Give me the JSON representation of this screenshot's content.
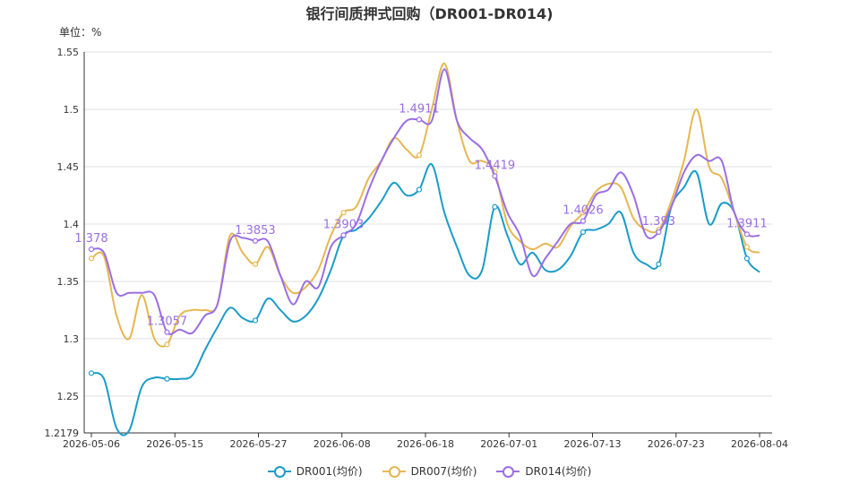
{
  "chart_data": {
    "type": "line",
    "title": "银行间质押式回购（DR001-DR014)",
    "unit_label": "单位：%",
    "ylim": [
      1.2179,
      1.55
    ],
    "y_ticks": [
      "1.2179",
      "1.25",
      "1.3",
      "1.35",
      "1.4",
      "1.45",
      "1.5",
      "1.55"
    ],
    "x_ticks": [
      "2026-05-06",
      "2026-05-15",
      "2026-05-27",
      "2026-06-08",
      "2026-06-18",
      "2026-07-01",
      "2026-07-13",
      "2026-07-23",
      "2026-08-04"
    ],
    "grid": true,
    "legend_position": "bottom",
    "series": [
      {
        "name": "DR001(均价)",
        "color": "#1b9cc7",
        "values": [
          1.27,
          1.265,
          1.222,
          1.22,
          1.258,
          1.266,
          1.265,
          1.265,
          1.268,
          1.29,
          1.31,
          1.327,
          1.318,
          1.316,
          1.335,
          1.325,
          1.315,
          1.32,
          1.335,
          1.36,
          1.39,
          1.395,
          1.405,
          1.42,
          1.436,
          1.425,
          1.43,
          1.452,
          1.41,
          1.38,
          1.355,
          1.36,
          1.415,
          1.39,
          1.365,
          1.375,
          1.36,
          1.36,
          1.372,
          1.393,
          1.395,
          1.4,
          1.41,
          1.375,
          1.365,
          1.365,
          1.415,
          1.432,
          1.445,
          1.4,
          1.418,
          1.41,
          1.37,
          1.358
        ],
        "point_labels": {}
      },
      {
        "name": "DR007(均价)",
        "color": "#e6b751",
        "values": [
          1.37,
          1.372,
          1.32,
          1.3,
          1.338,
          1.3,
          1.295,
          1.32,
          1.325,
          1.325,
          1.33,
          1.39,
          1.375,
          1.365,
          1.38,
          1.355,
          1.34,
          1.345,
          1.36,
          1.39,
          1.41,
          1.415,
          1.44,
          1.455,
          1.475,
          1.465,
          1.46,
          1.5,
          1.54,
          1.49,
          1.455,
          1.455,
          1.445,
          1.4,
          1.385,
          1.378,
          1.383,
          1.38,
          1.398,
          1.41,
          1.428,
          1.435,
          1.432,
          1.405,
          1.395,
          1.395,
          1.42,
          1.455,
          1.5,
          1.45,
          1.44,
          1.41,
          1.38,
          1.375
        ],
        "point_labels": {}
      },
      {
        "name": "DR014(均价)",
        "color": "#9b6ee3",
        "values": [
          1.378,
          1.375,
          1.34,
          1.34,
          1.34,
          1.338,
          1.3057,
          1.308,
          1.305,
          1.32,
          1.33,
          1.385,
          1.388,
          1.3853,
          1.385,
          1.355,
          1.33,
          1.35,
          1.345,
          1.38,
          1.3903,
          1.4,
          1.43,
          1.455,
          1.475,
          1.49,
          1.4911,
          1.49,
          1.535,
          1.49,
          1.475,
          1.465,
          1.4419,
          1.41,
          1.39,
          1.355,
          1.37,
          1.385,
          1.4,
          1.4026,
          1.425,
          1.43,
          1.445,
          1.425,
          1.39,
          1.393,
          1.415,
          1.445,
          1.46,
          1.455,
          1.455,
          1.41,
          1.3911,
          1.39
        ],
        "point_labels": {
          "0": "1.378",
          "6": "1.3057",
          "13": "1.3853",
          "20": "1.3903",
          "26": "1.4911",
          "32": "1.4419",
          "39": "1.4026",
          "45": "1.393",
          "52": "1.3911"
        }
      }
    ],
    "marker_indices": [
      0,
      6,
      13,
      20,
      26,
      32,
      39,
      45,
      52
    ]
  }
}
